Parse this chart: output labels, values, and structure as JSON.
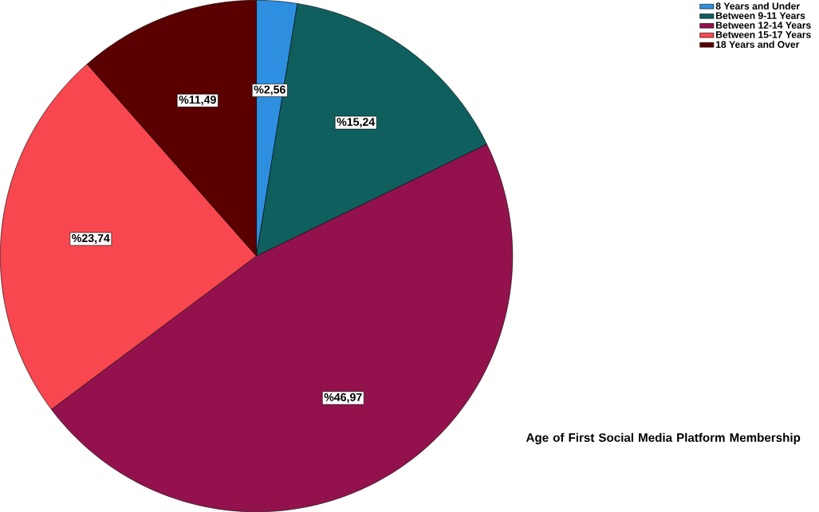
{
  "chart_data": {
    "type": "pie",
    "title": "Age of First Social Media Platform Membership",
    "categories": [
      "8 Years and Under",
      "Between 9-11 Years",
      "Between 12-14 Years",
      "Between 15-17 Years",
      "18 Years and Over"
    ],
    "values": [
      2.56,
      15.24,
      46.97,
      23.74,
      11.49
    ],
    "colors": [
      "#2e8fe0",
      "#0f5f5f",
      "#93124e",
      "#f9474f",
      "#5a0000"
    ],
    "value_labels": [
      "%2,56",
      "%15,24",
      "%46,97",
      "%23,74",
      "%11,49"
    ],
    "legend": "top right"
  }
}
